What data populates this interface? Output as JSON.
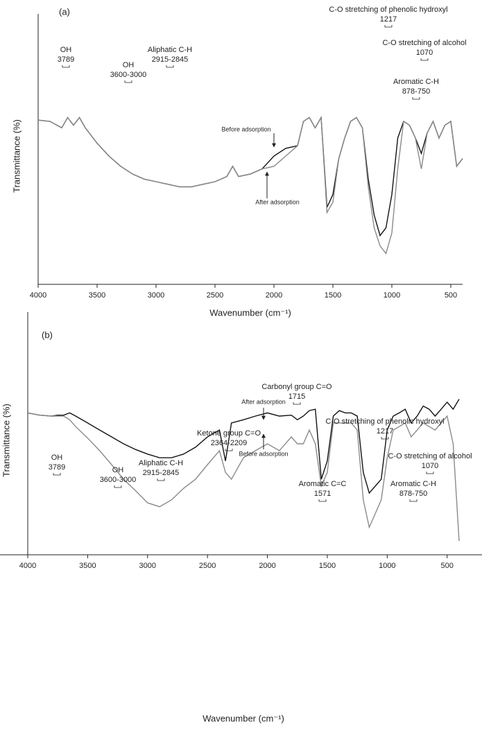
{
  "chart_data": [
    {
      "type": "line",
      "panel": "(a)",
      "xlabel": "Wavenumber (cm⁻¹)",
      "ylabel": "Transmittance (%)",
      "xlim": [
        4000,
        400
      ],
      "ylim": [
        0,
        100
      ],
      "xticks": [
        4000,
        3500,
        3000,
        2500,
        2000,
        1500,
        1000,
        500
      ],
      "x": [
        4000,
        3900,
        3800,
        3750,
        3700,
        3650,
        3600,
        3500,
        3400,
        3300,
        3200,
        3100,
        3000,
        2900,
        2800,
        2700,
        2600,
        2500,
        2400,
        2350,
        2300,
        2200,
        2100,
        2000,
        1900,
        1800,
        1750,
        1700,
        1650,
        1600,
        1550,
        1500,
        1450,
        1400,
        1350,
        1300,
        1250,
        1200,
        1150,
        1100,
        1050,
        1000,
        950,
        900,
        850,
        800,
        750,
        700,
        650,
        600,
        550,
        500,
        450,
        400
      ],
      "series": [
        {
          "name": "Before adsorption",
          "color": "#111111",
          "values": [
            64,
            63.5,
            61,
            65,
            62,
            65,
            61,
            55,
            50,
            46,
            43,
            41,
            40,
            39,
            38,
            38,
            39,
            40,
            42,
            46,
            42,
            43,
            45,
            50,
            53,
            54,
            63.5,
            65,
            61,
            65,
            30,
            35,
            49,
            57,
            63.5,
            65,
            61,
            41,
            27,
            19,
            22,
            35,
            57,
            63.5,
            62,
            57,
            51,
            59,
            63.5,
            57,
            62,
            63.5,
            46,
            49
          ]
        },
        {
          "name": "After adsorption",
          "color": "#8a8a8a",
          "values": [
            64,
            63.5,
            61,
            65,
            62,
            65,
            61,
            55,
            50,
            46,
            43,
            41,
            40,
            39,
            38,
            38,
            39,
            40,
            42,
            46,
            42,
            43,
            45,
            46,
            50,
            54,
            63.5,
            65,
            61,
            65,
            28,
            32,
            49,
            57,
            63.5,
            65,
            61,
            38,
            22,
            15,
            12,
            20,
            45,
            63.5,
            62,
            57,
            45,
            59,
            63.5,
            57,
            62,
            63.5,
            46,
            49
          ]
        }
      ],
      "annotations": [
        {
          "label": "OH",
          "range": "3789"
        },
        {
          "label": "OH",
          "range": "3600-3000"
        },
        {
          "label": "Aliphatic C-H",
          "range": "2915-2845"
        },
        {
          "label": "C-O stretching of phenolic hydroxyl",
          "range": "1217"
        },
        {
          "label": "C-O stretching of alcohol",
          "range": "1070"
        },
        {
          "label": "Aromatic C-H",
          "range": "878-750"
        }
      ]
    },
    {
      "type": "line",
      "panel": "(b)",
      "xlabel": "Wavenumber (cm⁻¹)",
      "ylabel": "Transmittance (%)",
      "xlim": [
        4000,
        400
      ],
      "ylim": [
        0,
        100
      ],
      "xticks": [
        4000,
        3500,
        3000,
        2500,
        2000,
        1500,
        1000,
        500
      ],
      "x": [
        4000,
        3900,
        3800,
        3750,
        3700,
        3650,
        3600,
        3500,
        3400,
        3300,
        3200,
        3100,
        3000,
        2900,
        2800,
        2700,
        2600,
        2500,
        2400,
        2350,
        2300,
        2200,
        2100,
        2000,
        1900,
        1800,
        1750,
        1700,
        1650,
        1600,
        1550,
        1500,
        1450,
        1400,
        1350,
        1300,
        1250,
        1200,
        1150,
        1100,
        1050,
        1000,
        950,
        900,
        850,
        800,
        750,
        700,
        650,
        600,
        550,
        500,
        450,
        400
      ],
      "series": [
        {
          "name": "After adsorption",
          "color": "#111111",
          "values": [
            62,
            61,
            60.6,
            61,
            61,
            62,
            60.6,
            57.6,
            54.5,
            51.5,
            48.5,
            46,
            44,
            42.4,
            42.4,
            44,
            47,
            51.5,
            54.5,
            41,
            57.6,
            59,
            60.6,
            62,
            60.6,
            61,
            59,
            60.6,
            63,
            63.6,
            33,
            41,
            60.6,
            63,
            62,
            62,
            60.6,
            36,
            27,
            30,
            33,
            54.5,
            60.6,
            62,
            63.6,
            57.6,
            60.6,
            65,
            63.6,
            60.6,
            63.6,
            66.7,
            63.6,
            68
          ]
        },
        {
          "name": "Before adsorption",
          "color": "#8a8a8a",
          "values": [
            62,
            61,
            60.6,
            60.6,
            60.6,
            59,
            56,
            51,
            45.5,
            39.4,
            33,
            28,
            22.7,
            21,
            24,
            29,
            33,
            39.4,
            45.5,
            36,
            33,
            42.4,
            45.5,
            48.5,
            45.5,
            51.5,
            48.5,
            48.5,
            54.5,
            48.5,
            30,
            36,
            57.6,
            57.6,
            57.6,
            57.6,
            54.5,
            24,
            12,
            18,
            24,
            42.4,
            54.5,
            56,
            57.6,
            51.5,
            54.5,
            57.6,
            56,
            54.5,
            57.6,
            60.6,
            48.5,
            6
          ]
        }
      ],
      "annotations": [
        {
          "label": "OH",
          "range": "3789"
        },
        {
          "label": "OH",
          "range": "3600-3000"
        },
        {
          "label": "Aliphatic C-H",
          "range": "2915-2845"
        },
        {
          "label": "Ketone group C=O",
          "range": "2364-2209"
        },
        {
          "label": "Carbonyl group C=O",
          "range": "1715"
        },
        {
          "label": "C-O stretching of phenolic hydroxyl",
          "range": "1217"
        },
        {
          "label": "C-O stretching of alcohol",
          "range": "1070"
        },
        {
          "label": "Aromatic C=C",
          "range": "1571"
        },
        {
          "label": "Aromatic C-H",
          "range": "878-750"
        }
      ]
    }
  ]
}
